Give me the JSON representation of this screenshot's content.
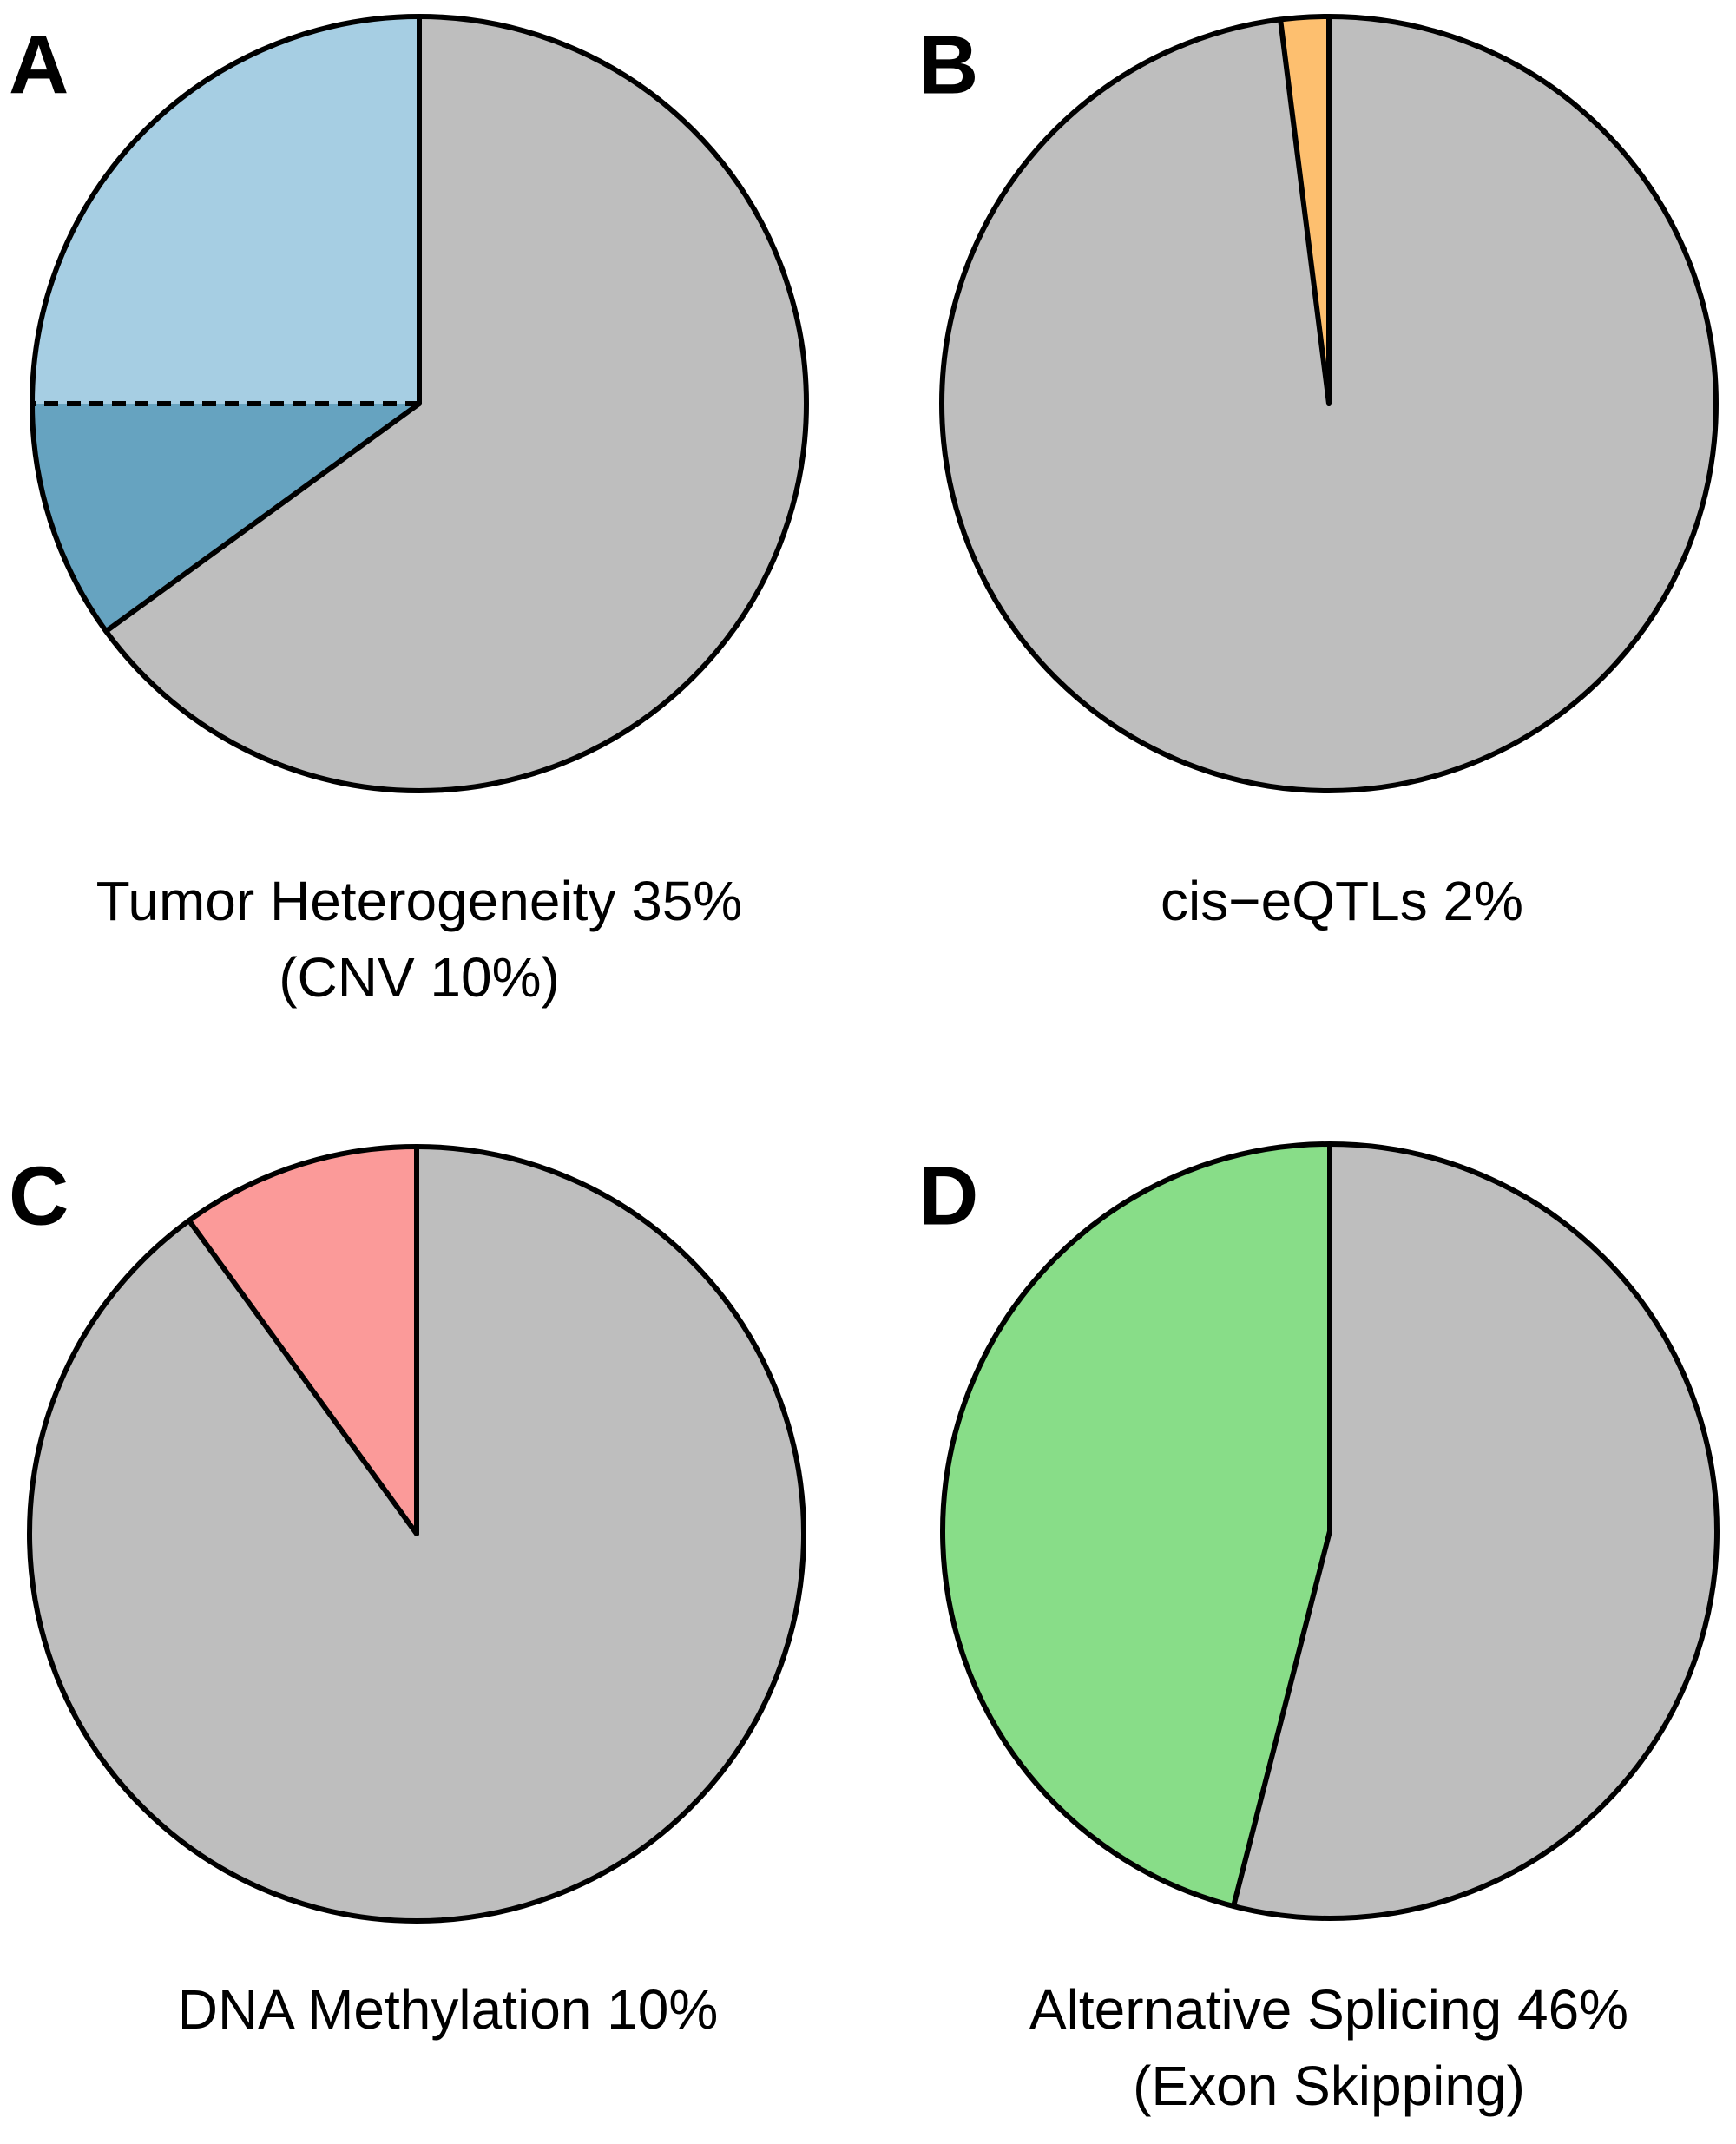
{
  "chart_data": [
    {
      "type": "pie",
      "panel": "A",
      "caption": [
        "Tumor Heterogeneity 35%",
        "(CNV 10%)"
      ],
      "values": [
        25,
        10,
        65
      ],
      "colors": [
        "#a6cee3",
        "#66a3c0",
        "#bebebe"
      ],
      "direction": "counterclockwise",
      "dashed_edges": [
        1
      ]
    },
    {
      "type": "pie",
      "panel": "B",
      "caption": [
        "cis−eQTLs 2%"
      ],
      "values": [
        2,
        98
      ],
      "colors": [
        "#fdbf6f",
        "#bebebe"
      ],
      "direction": "counterclockwise",
      "dashed_edges": []
    },
    {
      "type": "pie",
      "panel": "C",
      "caption": [
        "DNA Methylation 10%"
      ],
      "values": [
        10,
        90
      ],
      "colors": [
        "#fb9a99",
        "#bebebe"
      ],
      "direction": "counterclockwise",
      "dashed_edges": []
    },
    {
      "type": "pie",
      "panel": "D",
      "caption": [
        "Alternative Splicing 46%",
        "(Exon Skipping)"
      ],
      "values": [
        46,
        54
      ],
      "colors": [
        "#88dd88",
        "#bebebe"
      ],
      "direction": "counterclockwise",
      "dashed_edges": []
    }
  ]
}
